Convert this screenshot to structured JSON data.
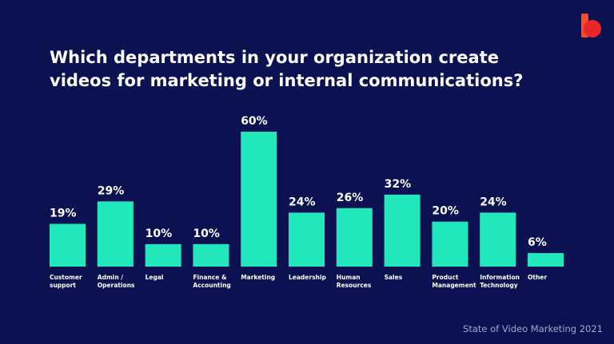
{
  "chart_data": {
    "type": "bar",
    "title": "Which departments in your organization create videos for marketing or internal communications?",
    "categories": [
      "Customer support",
      "Admin / Operations",
      "Legal",
      "Finance & Accounting",
      "Marketing",
      "Leadership",
      "Human Resources",
      "Sales",
      "Product Management",
      "Information Technology",
      "Other"
    ],
    "values": [
      19,
      29,
      10,
      10,
      60,
      24,
      26,
      32,
      20,
      24,
      6
    ],
    "value_labels": [
      "19%",
      "29%",
      "10%",
      "10%",
      "60%",
      "24%",
      "26%",
      "32%",
      "20%",
      "24%",
      "6%"
    ],
    "color": "#22e6bc",
    "footer": "State of Video Marketing 2021"
  }
}
